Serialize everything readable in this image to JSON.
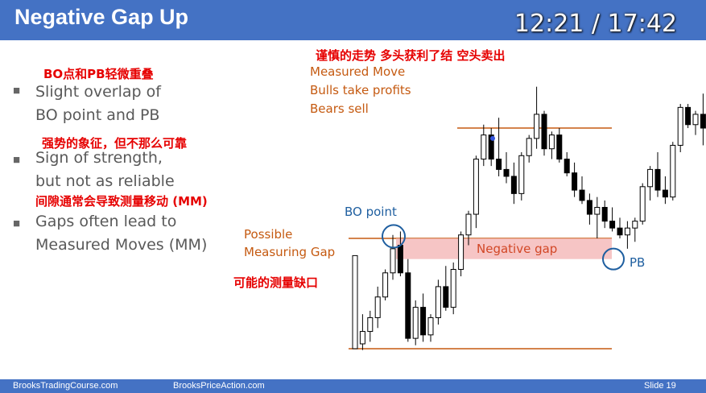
{
  "slide": {
    "title": "Negative Gap Up",
    "timer": "12:21 / 17:42",
    "slide_number": "Slide 19"
  },
  "bullets": [
    {
      "line1": "Slight overlap of",
      "line2": "BO point and PB",
      "note": "BO点和PB轻微重叠"
    },
    {
      "line1": "Sign of strength,",
      "line2": "but not as reliable",
      "note": "强势的象征，但不那么可靠"
    },
    {
      "line1": "Gaps often lead to",
      "line2": "Measured Moves (MM)",
      "note": "间隙通常会导致测量移动 (MM)"
    }
  ],
  "annotations": {
    "top_cn": "谨慎的走势 多头获利了结 空头卖出",
    "measured_move": "Measured Move",
    "bulls_take_profits": "Bulls take profits",
    "bears_sell": "Bears sell",
    "bo_point": "BO point",
    "possible": "Possible",
    "measuring_gap": "Measuring Gap",
    "measuring_gap_cn": "可能的测量缺口",
    "negative_gap": "Negative gap",
    "pb": "PB"
  },
  "footer": {
    "left": "BrooksTradingCourse.com",
    "center": "BrooksPriceAction.com"
  },
  "colors": {
    "header_bg": "#4472c4",
    "bull_candle": "#ffffff",
    "bear_candle": "#000000",
    "level_line": "#c55a11",
    "gap_fill": "#f4b6b6",
    "circle": "#1f5fa0",
    "note_red": "#e60000"
  },
  "chart_data": {
    "type": "candlestick",
    "levels": {
      "measured_move_top": 16,
      "bo_point": 0,
      "bottom": -16
    },
    "negative_gap": {
      "top": 0,
      "bottom": -3
    },
    "candles": [
      {
        "o": -16.0,
        "h": -2.5,
        "l": -16.0,
        "c": -2.5
      },
      {
        "o": -15.3,
        "h": -11.0,
        "l": -16.2,
        "c": -13.5
      },
      {
        "o": -13.5,
        "h": -10.5,
        "l": -15.0,
        "c": -11.5
      },
      {
        "o": -11.5,
        "h": -7.0,
        "l": -13.0,
        "c": -8.5
      },
      {
        "o": -8.5,
        "h": -4.5,
        "l": -9.0,
        "c": -5.0
      },
      {
        "o": -5.0,
        "h": 0.5,
        "l": -6.0,
        "c": -1.5
      },
      {
        "o": -1.0,
        "h": 1.0,
        "l": -5.5,
        "c": -5.0
      },
      {
        "o": -5.0,
        "h": -3.0,
        "l": -15.0,
        "c": -14.5
      },
      {
        "o": -14.5,
        "h": -9.0,
        "l": -15.5,
        "c": -10.0
      },
      {
        "o": -10.0,
        "h": -8.0,
        "l": -15.0,
        "c": -14.0
      },
      {
        "o": -14.0,
        "h": -11.0,
        "l": -15.0,
        "c": -11.5
      },
      {
        "o": -11.5,
        "h": -6.0,
        "l": -12.5,
        "c": -7.0
      },
      {
        "o": -7.0,
        "h": -4.0,
        "l": -10.5,
        "c": -10.0
      },
      {
        "o": -10.0,
        "h": -3.5,
        "l": -11.0,
        "c": -4.5
      },
      {
        "o": -4.5,
        "h": 1.0,
        "l": -5.5,
        "c": 0.5
      },
      {
        "o": 0.5,
        "h": 4.0,
        "l": -1.0,
        "c": 3.5
      },
      {
        "o": 3.5,
        "h": 12.0,
        "l": 1.5,
        "c": 11.5
      },
      {
        "o": 11.5,
        "h": 16.5,
        "l": 10.5,
        "c": 15.0
      },
      {
        "o": 15.0,
        "h": 16.0,
        "l": 10.5,
        "c": 11.5
      },
      {
        "o": 11.5,
        "h": 17.5,
        "l": 9.0,
        "c": 10.0
      },
      {
        "o": 10.0,
        "h": 12.5,
        "l": 8.0,
        "c": 9.0
      },
      {
        "o": 9.0,
        "h": 11.0,
        "l": 5.0,
        "c": 6.5
      },
      {
        "o": 6.5,
        "h": 12.5,
        "l": 5.5,
        "c": 12.0
      },
      {
        "o": 12.0,
        "h": 15.0,
        "l": 11.0,
        "c": 14.5
      },
      {
        "o": 14.5,
        "h": 22.0,
        "l": 13.0,
        "c": 18.0
      },
      {
        "o": 18.0,
        "h": 18.5,
        "l": 12.0,
        "c": 13.0
      },
      {
        "o": 13.0,
        "h": 15.5,
        "l": 11.5,
        "c": 15.0
      },
      {
        "o": 15.0,
        "h": 16.0,
        "l": 11.0,
        "c": 11.5
      },
      {
        "o": 11.5,
        "h": 12.5,
        "l": 9.0,
        "c": 9.5
      },
      {
        "o": 9.5,
        "h": 11.0,
        "l": 6.0,
        "c": 7.0
      },
      {
        "o": 7.0,
        "h": 9.0,
        "l": 5.0,
        "c": 5.5
      },
      {
        "o": 5.5,
        "h": 6.5,
        "l": 2.0,
        "c": 3.5
      },
      {
        "o": 3.5,
        "h": 6.0,
        "l": 0.0,
        "c": 4.5
      },
      {
        "o": 4.5,
        "h": 5.5,
        "l": 1.5,
        "c": 2.5
      },
      {
        "o": 2.5,
        "h": 4.5,
        "l": 1.0,
        "c": 1.5
      },
      {
        "o": 1.5,
        "h": 3.0,
        "l": 0.0,
        "c": 0.5
      },
      {
        "o": 0.5,
        "h": 2.5,
        "l": -1.5,
        "c": 1.5
      },
      {
        "o": 1.5,
        "h": 3.0,
        "l": -0.5,
        "c": 2.5
      },
      {
        "o": 2.5,
        "h": 8.0,
        "l": 2.0,
        "c": 7.5
      },
      {
        "o": 7.5,
        "h": 10.5,
        "l": 5.5,
        "c": 10.0
      },
      {
        "o": 10.0,
        "h": 12.5,
        "l": 6.0,
        "c": 7.0
      },
      {
        "o": 7.0,
        "h": 9.0,
        "l": 5.0,
        "c": 6.0
      },
      {
        "o": 6.0,
        "h": 14.0,
        "l": 5.5,
        "c": 13.5
      },
      {
        "o": 13.5,
        "h": 19.5,
        "l": 12.5,
        "c": 19.0
      },
      {
        "o": 19.0,
        "h": 19.5,
        "l": 16.0,
        "c": 16.5
      },
      {
        "o": 16.5,
        "h": 18.5,
        "l": 15.0,
        "c": 18.0
      },
      {
        "o": 18.0,
        "h": 21.0,
        "l": 13.5,
        "c": 16.0
      }
    ]
  }
}
